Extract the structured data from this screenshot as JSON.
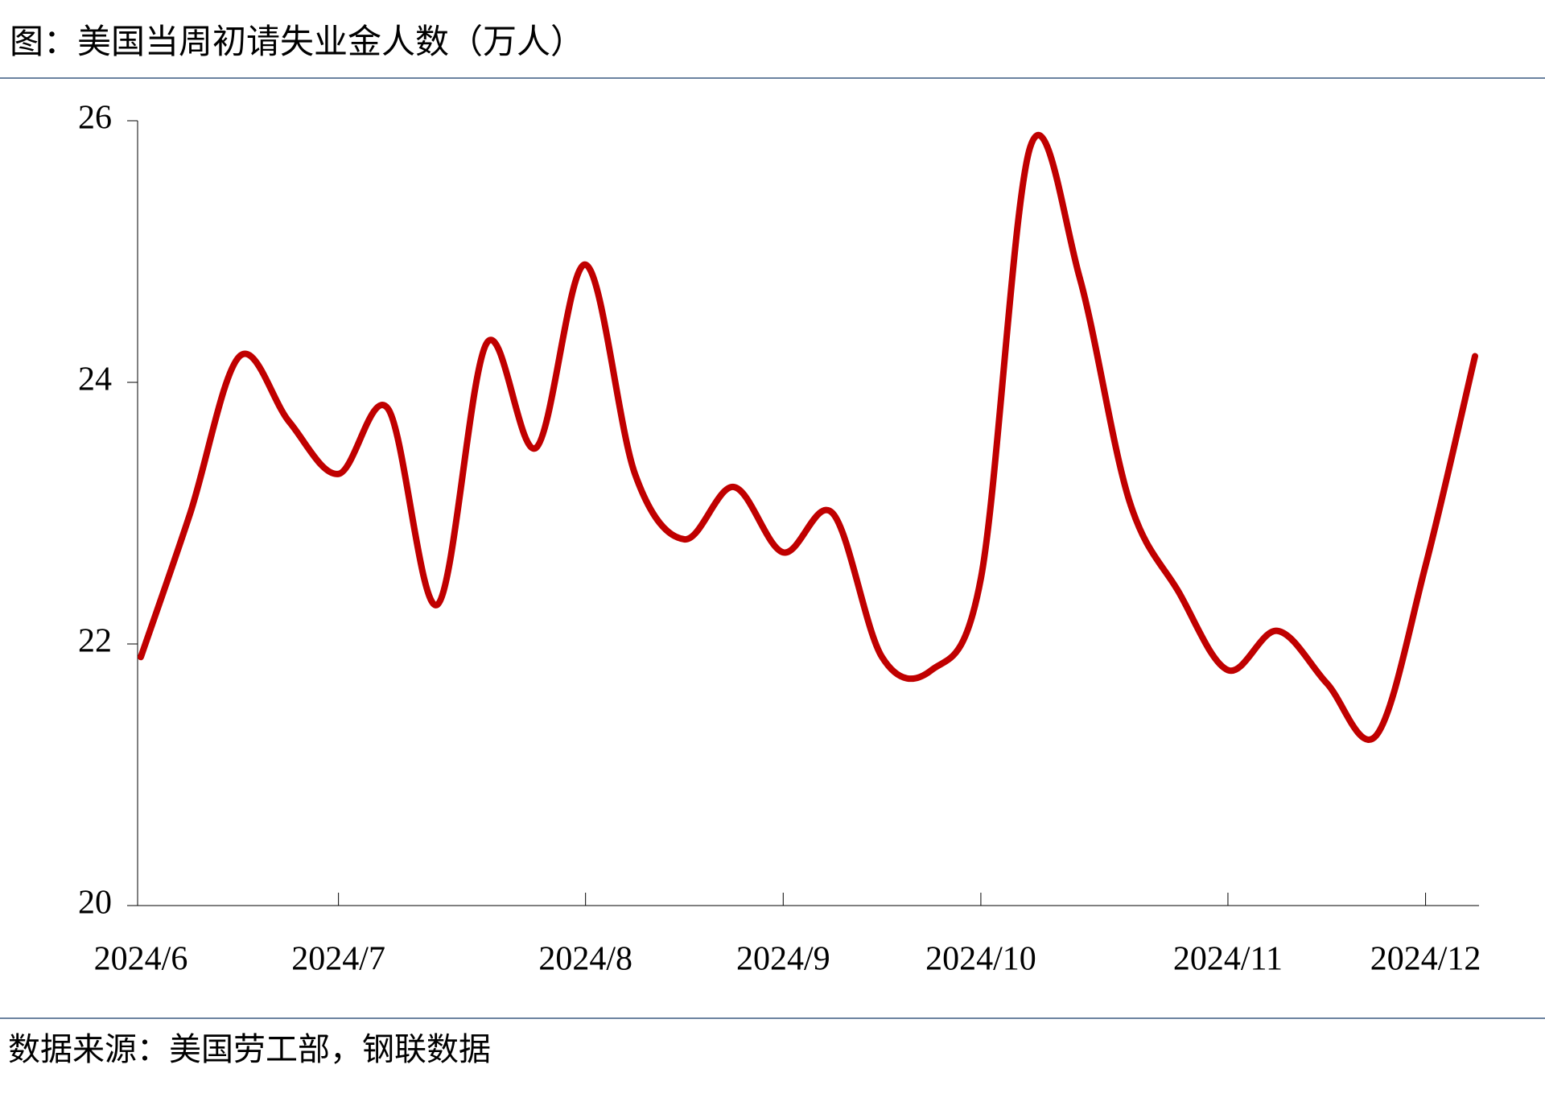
{
  "chart_data": {
    "type": "line",
    "title": "图：美国当周初请失业金人数（万人）",
    "source": "数据来源：美国劳工部，钢联数据",
    "categories": [
      "2024/6",
      null,
      null,
      null,
      "2024/7",
      null,
      null,
      null,
      null,
      "2024/8",
      null,
      null,
      null,
      "2024/9",
      null,
      null,
      null,
      "2024/10",
      null,
      null,
      null,
      null,
      "2024/11",
      null,
      null,
      null,
      "2024/12",
      null
    ],
    "series": [
      {
        "color": "#c00000",
        "values": [
          21.9,
          23.0,
          24.2,
          23.7,
          23.3,
          23.8,
          22.3,
          24.3,
          23.5,
          24.9,
          23.3,
          22.8,
          23.2,
          22.7,
          23.0,
          21.9,
          21.8,
          22.5,
          25.8,
          24.8,
          23.1,
          22.4,
          21.8,
          22.1,
          21.7,
          21.3,
          22.6,
          24.2
        ]
      }
    ],
    "ylim": [
      20,
      26
    ],
    "yticks": [
      20,
      22,
      24,
      26
    ],
    "grid": false
  }
}
